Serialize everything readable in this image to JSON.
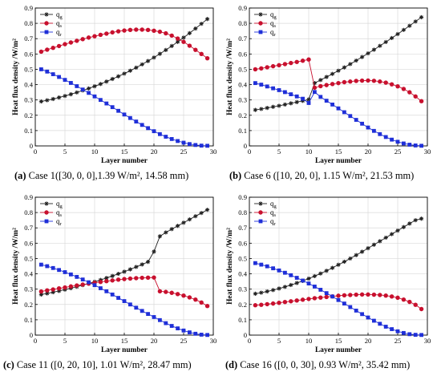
{
  "chart_data": [
    {
      "type": "line",
      "panel_label": "(a)",
      "caption": "Case 1([30, 0, 0],1.39 W/m², 14.58 mm)",
      "xlabel": "Layer number",
      "ylabel": "Heat flux density /W/m²",
      "xlim": [
        0,
        30
      ],
      "ylim": [
        0,
        0.9
      ],
      "xticks": [
        "0",
        "5",
        "10",
        "15",
        "20",
        "25",
        "30"
      ],
      "yticks": [
        "0",
        "0.1",
        "0.2",
        "0.3",
        "0.4",
        "0.5",
        "0.6",
        "0.7",
        "0.8",
        "0.9"
      ],
      "grid": true,
      "legend_position": "top-left",
      "x": [
        1,
        2,
        3,
        4,
        5,
        6,
        7,
        8,
        9,
        10,
        11,
        12,
        13,
        14,
        15,
        16,
        17,
        18,
        19,
        20,
        21,
        22,
        23,
        24,
        25,
        26,
        27,
        28,
        29
      ],
      "series": [
        {
          "name": "q_g",
          "color": "#222222",
          "marker": "star",
          "values": [
            0.29,
            0.298,
            0.306,
            0.316,
            0.326,
            0.337,
            0.349,
            0.362,
            0.375,
            0.389,
            0.404,
            0.42,
            0.437,
            0.454,
            0.472,
            0.491,
            0.511,
            0.532,
            0.554,
            0.577,
            0.601,
            0.626,
            0.652,
            0.679,
            0.707,
            0.736,
            0.766,
            0.797,
            0.828
          ]
        },
        {
          "name": "q_s",
          "color": "#c8102e",
          "marker": "circle",
          "values": [
            0.615,
            0.628,
            0.64,
            0.652,
            0.664,
            0.675,
            0.686,
            0.697,
            0.707,
            0.716,
            0.725,
            0.733,
            0.741,
            0.748,
            0.753,
            0.757,
            0.759,
            0.759,
            0.757,
            0.752,
            0.745,
            0.735,
            0.72,
            0.701,
            0.679,
            0.654,
            0.627,
            0.6,
            0.572
          ]
        },
        {
          "name": "q_r",
          "color": "#1f2fd8",
          "marker": "square",
          "values": [
            0.5,
            0.485,
            0.468,
            0.45,
            0.431,
            0.411,
            0.39,
            0.368,
            0.346,
            0.323,
            0.3,
            0.277,
            0.253,
            0.229,
            0.205,
            0.182,
            0.159,
            0.137,
            0.116,
            0.096,
            0.077,
            0.06,
            0.045,
            0.032,
            0.021,
            0.012,
            0.006,
            0.002,
            0.001
          ]
        }
      ]
    },
    {
      "type": "line",
      "panel_label": "(b)",
      "caption": "Case 6 ([10, 20, 0], 1.15 W/m², 21.53 mm)",
      "xlabel": "Layer number",
      "ylabel": "Heat flux density /W/m²",
      "xlim": [
        0,
        30
      ],
      "ylim": [
        0,
        0.9
      ],
      "xticks": [
        "0",
        "5",
        "10",
        "15",
        "20",
        "25",
        "30"
      ],
      "yticks": [
        "0",
        "0.1",
        "0.2",
        "0.3",
        "0.4",
        "0.5",
        "0.6",
        "0.7",
        "0.8",
        "0.9"
      ],
      "grid": true,
      "legend_position": "top-left",
      "x": [
        1,
        2,
        3,
        4,
        5,
        6,
        7,
        8,
        9,
        10,
        11,
        12,
        13,
        14,
        15,
        16,
        17,
        18,
        19,
        20,
        21,
        22,
        23,
        24,
        25,
        26,
        27,
        28,
        29
      ],
      "series": [
        {
          "name": "q_g",
          "color": "#222222",
          "marker": "star",
          "values": [
            0.235,
            0.241,
            0.248,
            0.255,
            0.262,
            0.27,
            0.278,
            0.286,
            0.294,
            0.303,
            0.41,
            0.43,
            0.45,
            0.47,
            0.491,
            0.512,
            0.534,
            0.557,
            0.58,
            0.604,
            0.628,
            0.653,
            0.678,
            0.704,
            0.73,
            0.757,
            0.784,
            0.812,
            0.84
          ]
        },
        {
          "name": "q_s",
          "color": "#c8102e",
          "marker": "circle",
          "values": [
            0.5,
            0.506,
            0.513,
            0.52,
            0.527,
            0.534,
            0.541,
            0.548,
            0.556,
            0.564,
            0.38,
            0.39,
            0.397,
            0.404,
            0.41,
            0.416,
            0.42,
            0.424,
            0.426,
            0.427,
            0.425,
            0.42,
            0.413,
            0.402,
            0.389,
            0.372,
            0.35,
            0.323,
            0.292
          ]
        },
        {
          "name": "q_r",
          "color": "#1f2fd8",
          "marker": "square",
          "values": [
            0.41,
            0.4,
            0.388,
            0.376,
            0.364,
            0.351,
            0.337,
            0.323,
            0.308,
            0.28,
            0.352,
            0.32,
            0.295,
            0.27,
            0.245,
            0.22,
            0.195,
            0.17,
            0.145,
            0.12,
            0.098,
            0.077,
            0.058,
            0.041,
            0.027,
            0.016,
            0.008,
            0.003,
            0.001
          ]
        }
      ]
    },
    {
      "type": "line",
      "panel_label": "(c)",
      "caption": "Case 11 ([0, 20, 10], 1.01 W/m², 28.47 mm)",
      "xlabel": "Layer number",
      "ylabel": "Heat flux density /W/m²",
      "xlim": [
        0,
        30
      ],
      "ylim": [
        0,
        0.9
      ],
      "xticks": [
        "0",
        "5",
        "10",
        "15",
        "20",
        "25",
        "30"
      ],
      "yticks": [
        "0",
        "0.1",
        "0.2",
        "0.3",
        "0.4",
        "0.5",
        "0.6",
        "0.7",
        "0.8",
        "0.9"
      ],
      "grid": true,
      "legend_position": "top-left",
      "x": [
        1,
        2,
        3,
        4,
        5,
        6,
        7,
        8,
        9,
        10,
        11,
        12,
        13,
        14,
        15,
        16,
        17,
        18,
        19,
        20,
        21,
        22,
        23,
        24,
        25,
        26,
        27,
        28,
        29
      ],
      "series": [
        {
          "name": "q_g",
          "color": "#222222",
          "marker": "star",
          "values": [
            0.265,
            0.272,
            0.28,
            0.288,
            0.297,
            0.306,
            0.316,
            0.326,
            0.337,
            0.348,
            0.36,
            0.373,
            0.386,
            0.4,
            0.414,
            0.429,
            0.445,
            0.461,
            0.478,
            0.545,
            0.645,
            0.67,
            0.692,
            0.713,
            0.734,
            0.755,
            0.776,
            0.797,
            0.818
          ]
        },
        {
          "name": "q_s",
          "color": "#c8102e",
          "marker": "circle",
          "values": [
            0.285,
            0.292,
            0.298,
            0.305,
            0.311,
            0.318,
            0.324,
            0.33,
            0.336,
            0.342,
            0.347,
            0.352,
            0.357,
            0.362,
            0.366,
            0.369,
            0.372,
            0.374,
            0.375,
            0.376,
            0.286,
            0.282,
            0.276,
            0.268,
            0.258,
            0.246,
            0.232,
            0.213,
            0.19
          ]
        },
        {
          "name": "q_r",
          "color": "#1f2fd8",
          "marker": "square",
          "values": [
            0.46,
            0.45,
            0.438,
            0.425,
            0.411,
            0.396,
            0.38,
            0.363,
            0.345,
            0.326,
            0.306,
            0.286,
            0.265,
            0.243,
            0.222,
            0.2,
            0.179,
            0.158,
            0.138,
            0.118,
            0.098,
            0.078,
            0.06,
            0.044,
            0.03,
            0.018,
            0.009,
            0.003,
            0.001
          ]
        }
      ]
    },
    {
      "type": "line",
      "panel_label": "(d)",
      "caption": "Case 16 ([0, 0, 30], 0.93 W/m², 35.42 mm)",
      "xlabel": "Layer number",
      "ylabel": "Heat flux density /W/m²",
      "xlim": [
        0,
        30
      ],
      "ylim": [
        0,
        0.9
      ],
      "xticks": [
        "0",
        "5",
        "10",
        "15",
        "20",
        "25",
        "30"
      ],
      "yticks": [
        "0",
        "0.1",
        "0.2",
        "0.3",
        "0.4",
        "0.5",
        "0.6",
        "0.7",
        "0.8",
        "0.9"
      ],
      "grid": true,
      "legend_position": "top-left",
      "x": [
        1,
        2,
        3,
        4,
        5,
        6,
        7,
        8,
        9,
        10,
        11,
        12,
        13,
        14,
        15,
        16,
        17,
        18,
        19,
        20,
        21,
        22,
        23,
        24,
        25,
        26,
        27,
        28,
        29
      ],
      "series": [
        {
          "name": "q_g",
          "color": "#222222",
          "marker": "star",
          "values": [
            0.27,
            0.277,
            0.285,
            0.294,
            0.304,
            0.315,
            0.327,
            0.34,
            0.354,
            0.369,
            0.385,
            0.402,
            0.42,
            0.439,
            0.459,
            0.479,
            0.5,
            0.522,
            0.544,
            0.567,
            0.59,
            0.613,
            0.636,
            0.659,
            0.682,
            0.705,
            0.728,
            0.75,
            0.76
          ]
        },
        {
          "name": "q_s",
          "color": "#c8102e",
          "marker": "circle",
          "values": [
            0.195,
            0.198,
            0.202,
            0.206,
            0.211,
            0.216,
            0.221,
            0.226,
            0.231,
            0.236,
            0.241,
            0.245,
            0.249,
            0.253,
            0.257,
            0.26,
            0.262,
            0.264,
            0.265,
            0.265,
            0.264,
            0.262,
            0.258,
            0.252,
            0.244,
            0.232,
            0.217,
            0.198,
            0.17
          ]
        },
        {
          "name": "q_r",
          "color": "#1f2fd8",
          "marker": "square",
          "values": [
            0.47,
            0.46,
            0.449,
            0.436,
            0.422,
            0.407,
            0.391,
            0.374,
            0.356,
            0.337,
            0.317,
            0.296,
            0.274,
            0.252,
            0.229,
            0.206,
            0.183,
            0.16,
            0.137,
            0.115,
            0.094,
            0.074,
            0.055,
            0.039,
            0.025,
            0.014,
            0.006,
            0.002,
            0.001
          ]
        }
      ]
    }
  ],
  "legend_symbols": [
    "q",
    "q",
    "q"
  ],
  "legend_subscripts": [
    "g",
    "s",
    "r"
  ],
  "colors": {
    "q_g": "#222222",
    "q_s": "#c8102e",
    "q_r": "#1f2fd8",
    "axis": "#000000",
    "grid": "#d9d9d9"
  }
}
